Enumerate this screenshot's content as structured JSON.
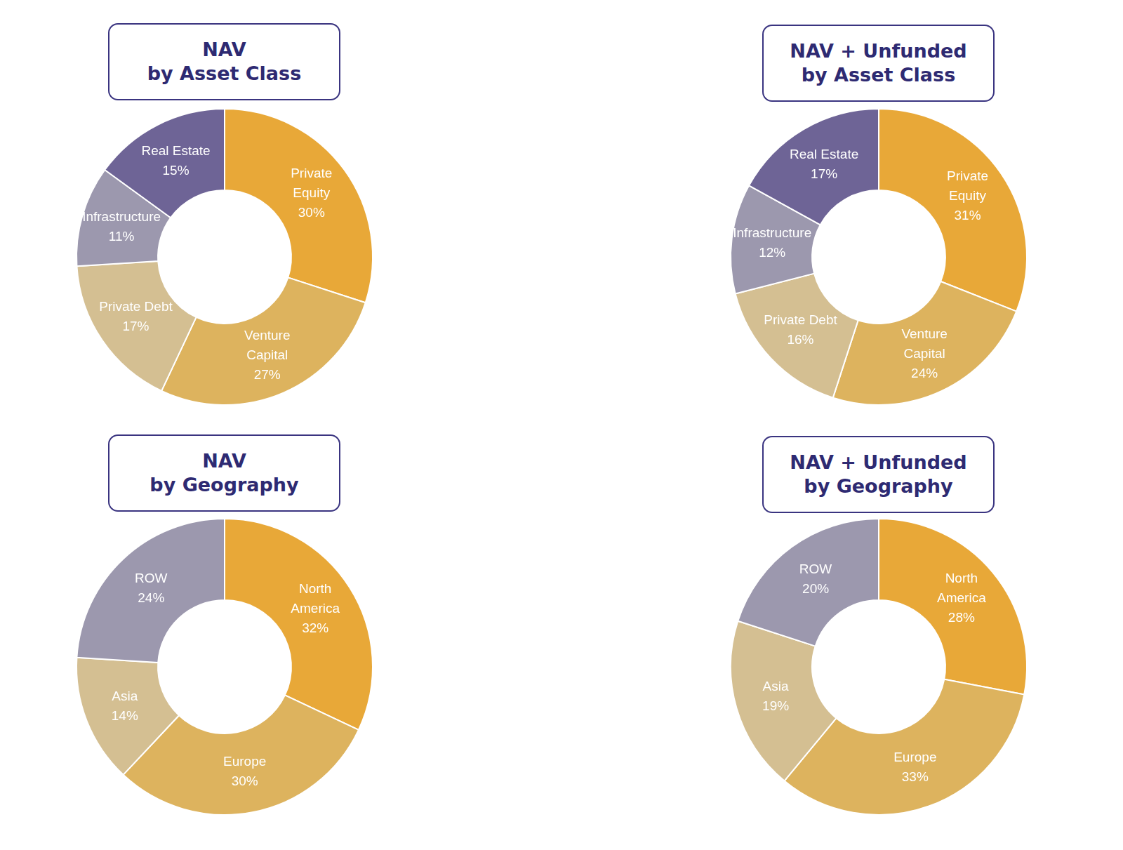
{
  "chart_data": [
    {
      "type": "doughnut",
      "title": "NAV\nby Asset Class",
      "categories": [
        "Private Equity",
        "Venture Capital",
        "Private Debt",
        "Infrastructure",
        "Real Estate"
      ],
      "values": [
        30,
        27,
        17,
        11,
        15
      ],
      "value_labels": [
        "30%",
        "27%",
        "17%",
        "11%",
        "15%"
      ],
      "colors": [
        "#e8a838",
        "#ddb35e",
        "#d4bf92",
        "#9c98ae",
        "#6e6496"
      ],
      "data_labels": true
    },
    {
      "type": "doughnut",
      "title": "NAV + Unfunded\nby Asset Class",
      "categories": [
        "Private Equity",
        "Venture Capital",
        "Private Debt",
        "Infrastructure",
        "Real Estate"
      ],
      "values": [
        31,
        24,
        16,
        12,
        17
      ],
      "value_labels": [
        "31%",
        "24%",
        "16%",
        "12%",
        "17%"
      ],
      "colors": [
        "#e8a838",
        "#ddb35e",
        "#d4bf92",
        "#9c98ae",
        "#6e6496"
      ],
      "data_labels": true
    },
    {
      "type": "doughnut",
      "title": "NAV\nby Geography",
      "categories": [
        "North America",
        "Europe",
        "Asia",
        "ROW"
      ],
      "values": [
        32,
        30,
        14,
        24
      ],
      "value_labels": [
        "32%",
        "30%",
        "14%",
        "24%"
      ],
      "colors": [
        "#e8a838",
        "#ddb35e",
        "#d4bf92",
        "#9c98ae"
      ],
      "data_labels": true
    },
    {
      "type": "doughnut",
      "title": "NAV + Unfunded\nby Geography",
      "categories": [
        "North America",
        "Europe",
        "Asia",
        "ROW"
      ],
      "values": [
        28,
        33,
        19,
        20
      ],
      "value_labels": [
        "28%",
        "33%",
        "19%",
        "20%"
      ],
      "colors": [
        "#e8a838",
        "#ddb35e",
        "#d4bf92",
        "#9c98ae"
      ],
      "data_labels": true
    }
  ]
}
